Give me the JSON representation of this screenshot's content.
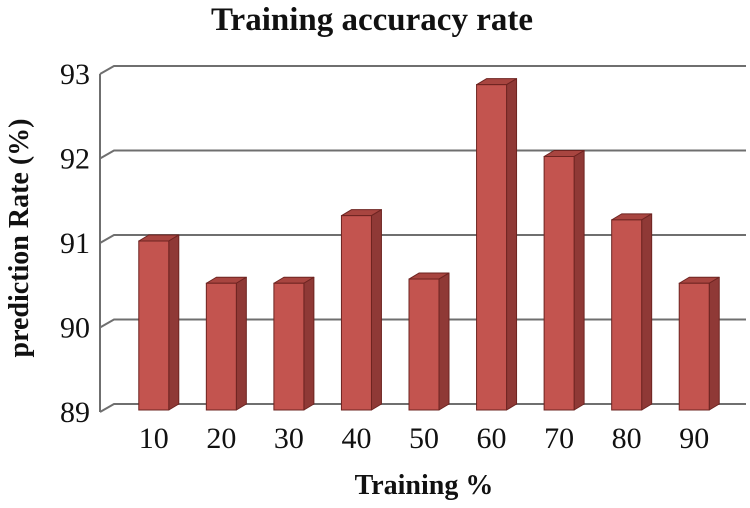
{
  "chart_data": {
    "type": "bar",
    "title": "Training accuracy rate",
    "xlabel": "Training %",
    "ylabel": "prediction Rate (%)",
    "categories": [
      "10",
      "20",
      "30",
      "40",
      "50",
      "60",
      "70",
      "80",
      "90"
    ],
    "values": [
      91.0,
      90.5,
      90.5,
      91.3,
      90.55,
      92.85,
      92.0,
      91.25,
      90.5
    ],
    "yticks": [
      89,
      90,
      91,
      92,
      93
    ],
    "ylim": [
      89,
      93
    ],
    "grid": true,
    "legend": "none",
    "style": "3d-bars",
    "colors": {
      "bar_front": "#c3544f",
      "bar_side": "#8f3936",
      "bar_top": "#a84540",
      "bar_outline": "#6e2421",
      "grid_line": "#6f6f6f",
      "text": "#111111",
      "background": "#ffffff"
    }
  }
}
